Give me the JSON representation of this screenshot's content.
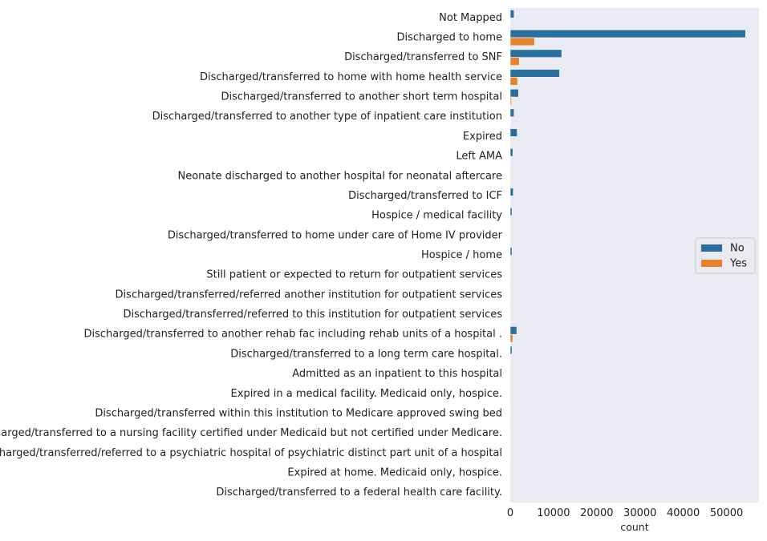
{
  "chart_data": {
    "type": "bar",
    "orientation": "horizontal",
    "categories": [
      "Not Mapped",
      "Discharged to home",
      "Discharged/transferred to SNF",
      "Discharged/transferred to home with home health service",
      "Discharged/transferred to another short term hospital",
      "Discharged/transferred to another type of inpatient care institution",
      "Expired",
      "Left AMA",
      "Neonate discharged to another hospital for neonatal aftercare",
      "Discharged/transferred to ICF",
      "Hospice / medical facility",
      "Discharged/transferred to home under care of Home IV provider",
      "Hospice / home",
      "Still patient or expected to return for outpatient services",
      "Discharged/transferred/referred another institution for outpatient services",
      "Discharged/transferred/referred to this institution for outpatient services",
      "Discharged/transferred to another rehab fac including rehab units of a hospital .",
      "Discharged/transferred to a long term care hospital.",
      "Admitted as an inpatient to this hospital",
      "Expired in a medical facility. Medicaid only, hospice.",
      "Discharged/transferred within this institution to Medicare approved swing bed",
      "Discharged/transferred to a nursing facility certified under Medicaid but not certified under Medicare.",
      "Discharged/transferred/referred to a psychiatric hospital of psychiatric distinct part unit of a hospital",
      "Expired at home. Medicaid only, hospice.",
      "Discharged/transferred to a federal health care facility."
    ],
    "series": [
      {
        "name": "No",
        "color": "#2b6f9e",
        "values": [
          900,
          54400,
          11900,
          11400,
          1900,
          900,
          1600,
          600,
          0,
          700,
          400,
          100,
          400,
          30,
          40,
          60,
          1500,
          400,
          10,
          10,
          30,
          20,
          50,
          10,
          5
        ]
      },
      {
        "name": "Yes",
        "color": "#e8822b",
        "values": [
          50,
          5600,
          2100,
          1700,
          300,
          100,
          0,
          50,
          0,
          50,
          10,
          10,
          10,
          5,
          5,
          5,
          600,
          50,
          0,
          0,
          5,
          5,
          5,
          0,
          0
        ]
      }
    ],
    "xlabel": "count",
    "ylabel": "",
    "xlim": [
      0,
      57500
    ],
    "xticks": [
      0,
      10000,
      20000,
      30000,
      40000,
      50000
    ],
    "xtick_labels": [
      "0",
      "10000",
      "20000",
      "30000",
      "40000",
      "50000"
    ],
    "grid": false,
    "background": "#eaeaf2",
    "legend_position": "center right"
  }
}
